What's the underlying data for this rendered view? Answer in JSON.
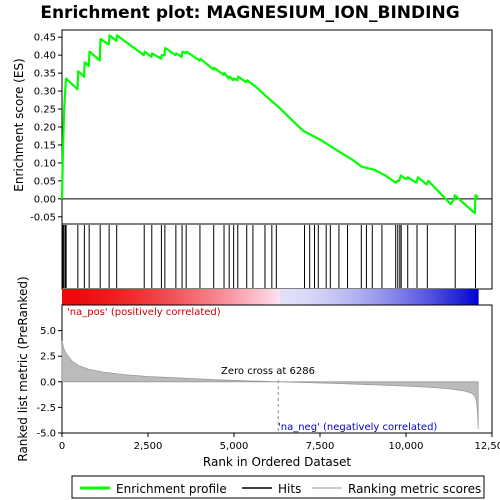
{
  "chart_data": {
    "type": "line",
    "title": "Enrichment plot: MAGNESIUM_ION_BINDING",
    "xlabel": "Rank in Ordered Dataset",
    "top_panel": {
      "ylabel": "Enrichment score (ES)",
      "xlim": [
        0,
        12500
      ],
      "ylim": [
        -0.07,
        0.47
      ],
      "yticks": [
        -0.05,
        0.0,
        0.05,
        0.1,
        0.15,
        0.2,
        0.25,
        0.3,
        0.35,
        0.4,
        0.45
      ],
      "ytick_labels": [
        "-0.05",
        "0.00",
        "0.05",
        "0.10",
        "0.15",
        "0.20",
        "0.25",
        "0.30",
        "0.35",
        "0.40",
        "0.45"
      ],
      "grid": false,
      "series": [
        {
          "name": "Enrichment profile",
          "color": "#00ff00",
          "x": [
            0,
            30,
            60,
            100,
            120,
            450,
            470,
            640,
            660,
            780,
            800,
            1100,
            1120,
            1360,
            1380,
            1580,
            1600,
            2380,
            2400,
            2600,
            2620,
            2880,
            2900,
            2980,
            3000,
            3300,
            3320,
            3480,
            3500,
            3600,
            3620,
            4000,
            4020,
            4400,
            4420,
            4700,
            4720,
            4850,
            4870,
            4980,
            5000,
            5100,
            5120,
            5350,
            5380,
            5600,
            6000,
            6300,
            7000,
            7500,
            8000,
            8500,
            8700,
            8900,
            9100,
            9400,
            9700,
            9750,
            9800,
            9850,
            10000,
            10050,
            10300,
            10350,
            10600,
            10650,
            11300,
            11400,
            11420,
            12000,
            12020,
            12100
          ],
          "y": [
            0.0,
            0.14,
            0.245,
            0.31,
            0.335,
            0.305,
            0.355,
            0.34,
            0.38,
            0.37,
            0.41,
            0.385,
            0.445,
            0.43,
            0.455,
            0.44,
            0.455,
            0.4,
            0.41,
            0.395,
            0.405,
            0.39,
            0.4,
            0.4,
            0.42,
            0.4,
            0.405,
            0.395,
            0.41,
            0.405,
            0.41,
            0.385,
            0.39,
            0.36,
            0.365,
            0.345,
            0.35,
            0.335,
            0.34,
            0.33,
            0.335,
            0.33,
            0.34,
            0.325,
            0.33,
            0.315,
            0.28,
            0.255,
            0.19,
            0.165,
            0.135,
            0.105,
            0.09,
            0.085,
            0.08,
            0.065,
            0.045,
            0.05,
            0.05,
            0.065,
            0.055,
            0.06,
            0.045,
            0.06,
            0.04,
            0.05,
            -0.015,
            0.0,
            0.01,
            -0.04,
            0.01,
            0.005
          ]
        }
      ]
    },
    "hits_panel": {
      "series_name": "Hits",
      "color": "#000000",
      "hit_positions": [
        30,
        60,
        100,
        120,
        460,
        650,
        790,
        1110,
        1370,
        1590,
        2390,
        2610,
        2890,
        2990,
        3310,
        3490,
        3610,
        4010,
        4410,
        4710,
        4860,
        4990,
        5110,
        5370,
        5550,
        5900,
        6100,
        6230,
        7050,
        7200,
        7340,
        7450,
        7680,
        7800,
        8050,
        8300,
        8700,
        8850,
        9020,
        9300,
        9700,
        9760,
        9820,
        9860,
        10050,
        10320,
        10620,
        11430,
        12020
      ]
    },
    "metric_panel": {
      "ylabel": "Ranked list metric (PreRanked)",
      "series_name": "Ranking metric scores",
      "color": "#bbbbbb",
      "xlim": [
        0,
        12500
      ],
      "ylim": [
        -5.0,
        7.5
      ],
      "yticks": [
        -5.0,
        -2.5,
        0.0,
        2.5,
        5.0
      ],
      "ytick_labels": [
        "-5.0",
        "-2.5",
        "0.0",
        "2.5",
        "5.0"
      ],
      "x": [
        0,
        20,
        50,
        100,
        200,
        300,
        500,
        800,
        1200,
        1800,
        2500,
        3500,
        4500,
        5500,
        6286,
        7000,
        8000,
        9000,
        10000,
        10800,
        11300,
        11700,
        11900,
        12000,
        12050,
        12080,
        12100
      ],
      "y": [
        4.0,
        3.7,
        3.3,
        2.9,
        2.4,
        2.0,
        1.55,
        1.2,
        0.95,
        0.7,
        0.52,
        0.35,
        0.2,
        0.08,
        0.0,
        -0.07,
        -0.17,
        -0.28,
        -0.42,
        -0.56,
        -0.7,
        -0.9,
        -1.1,
        -1.4,
        -1.9,
        -3.0,
        -4.6
      ],
      "zero_cross_label": "Zero cross at 6286",
      "zero_cross": 6286,
      "pos_label": "'na_pos' (positively correlated)",
      "neg_label": "'na_neg' (negatively correlated)",
      "pos_color": "#cc0000",
      "neg_color": "#0000cc"
    },
    "xticks": [
      0,
      2500,
      5000,
      7500,
      10000,
      12500
    ],
    "xtick_labels": [
      "0",
      "2,500",
      "5,000",
      "7,500",
      "10,000",
      "12,500"
    ],
    "legend": {
      "placement": "bottom",
      "entries": [
        "Enrichment profile",
        "Hits",
        "Ranking metric scores"
      ]
    }
  }
}
